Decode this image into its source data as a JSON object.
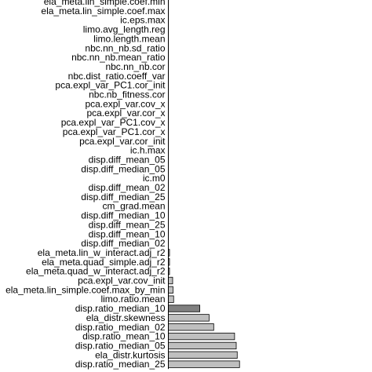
{
  "chart_data": {
    "type": "bar",
    "orientation": "horizontal",
    "title": "",
    "xlabel": "",
    "ylabel": "",
    "grid": false,
    "legend": "none",
    "bar_fill": "#bfbfbf",
    "bar_fill_dark": "#808080",
    "bar_stroke": "#000000",
    "xlim": [
      0,
      0.25
    ],
    "bars": [
      {
        "label": "ela_meta.lin_simple.coef.min",
        "value": 0,
        "fill": "light"
      },
      {
        "label": "ela_meta.lin_simple.coef.max",
        "value": 0,
        "fill": "light"
      },
      {
        "label": "ic.eps.max",
        "value": 0,
        "fill": "light"
      },
      {
        "label": "limo.avg_length.reg",
        "value": 0,
        "fill": "light"
      },
      {
        "label": "limo.length.mean",
        "value": 0,
        "fill": "light"
      },
      {
        "label": "nbc.nn_nb.sd_ratio",
        "value": 0,
        "fill": "light"
      },
      {
        "label": "nbc.nn_nb.mean_ratio",
        "value": 0,
        "fill": "light"
      },
      {
        "label": "nbc.nn_nb.cor",
        "value": 0,
        "fill": "light"
      },
      {
        "label": "nbc.dist_ratio.coeff_var",
        "value": 0,
        "fill": "light"
      },
      {
        "label": "pca.expl_var_PC1.cor_init",
        "value": 0,
        "fill": "light"
      },
      {
        "label": "nbc.nb_fitness.cor",
        "value": 0,
        "fill": "light"
      },
      {
        "label": "pca.expl_var.cov_x",
        "value": 0,
        "fill": "light"
      },
      {
        "label": "pca.expl_var.cor_x",
        "value": 0,
        "fill": "light"
      },
      {
        "label": "pca.expl_var_PC1.cov_x",
        "value": 0,
        "fill": "light"
      },
      {
        "label": "pca.expl_var_PC1.cor_x",
        "value": 0,
        "fill": "light"
      },
      {
        "label": "pca.expl_var.cor_init",
        "value": 0,
        "fill": "light"
      },
      {
        "label": "ic.h.max",
        "value": 0,
        "fill": "light"
      },
      {
        "label": "disp.diff_mean_05",
        "value": 0,
        "fill": "light"
      },
      {
        "label": "disp.diff_median_05",
        "value": 0,
        "fill": "light"
      },
      {
        "label": "ic.m0",
        "value": 0,
        "fill": "light"
      },
      {
        "label": "disp.diff_mean_02",
        "value": 0,
        "fill": "light"
      },
      {
        "label": "disp.diff_median_25",
        "value": 0,
        "fill": "light"
      },
      {
        "label": "cm_grad.mean",
        "value": 0,
        "fill": "light"
      },
      {
        "label": "disp.diff_median_10",
        "value": 0,
        "fill": "light"
      },
      {
        "label": "disp.diff_mean_25",
        "value": 0,
        "fill": "light"
      },
      {
        "label": "disp.diff_mean_10",
        "value": 0,
        "fill": "light"
      },
      {
        "label": "disp.diff_median_02",
        "value": 0,
        "fill": "light"
      },
      {
        "label": "ela_meta.lin_w_interact.adj_r2",
        "value": 0.002,
        "fill": "light"
      },
      {
        "label": "ela_meta.quad_simple.adj_r2",
        "value": 0.002,
        "fill": "light"
      },
      {
        "label": "ela_meta.quad_w_interact.adj_r2",
        "value": 0.003,
        "fill": "light"
      },
      {
        "label": "pca.expl_var.cov_init",
        "value": 0.013,
        "fill": "light"
      },
      {
        "label": "ela_meta.lin_simple.coef.max_by_min",
        "value": 0.014,
        "fill": "light"
      },
      {
        "label": "limo.ratio.mean",
        "value": 0.016,
        "fill": "light"
      },
      {
        "label": "disp.ratio_median_10",
        "value": 0.095,
        "fill": "dark"
      },
      {
        "label": "ela_distr.skewness",
        "value": 0.123,
        "fill": "light"
      },
      {
        "label": "disp.ratio_median_02",
        "value": 0.137,
        "fill": "light"
      },
      {
        "label": "disp.ratio_mean_10",
        "value": 0.2,
        "fill": "light"
      },
      {
        "label": "disp.ratio_median_05",
        "value": 0.205,
        "fill": "light"
      },
      {
        "label": "ela_distr.kurtosis",
        "value": 0.208,
        "fill": "light"
      },
      {
        "label": "disp.ratio_median_25",
        "value": 0.215,
        "fill": "light"
      }
    ]
  }
}
